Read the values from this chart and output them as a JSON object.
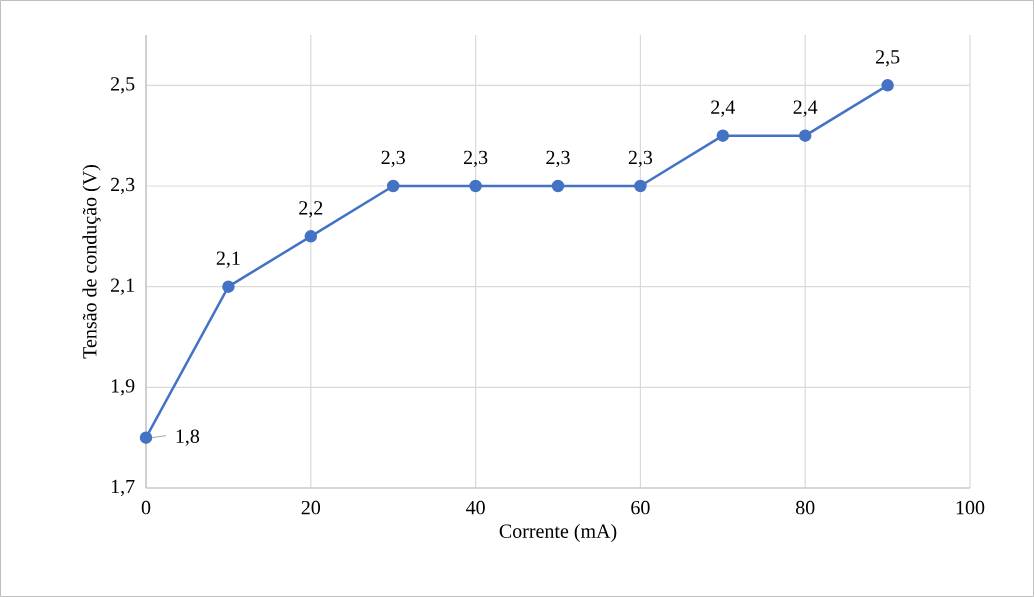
{
  "chart_data": {
    "type": "line",
    "xlabel": "Corrente (mA)",
    "ylabel": "Tensão de condução (V)",
    "x": [
      0,
      10,
      20,
      30,
      40,
      50,
      60,
      70,
      80,
      90
    ],
    "series": [
      {
        "color": "#4472c4",
        "values": [
          1.8,
          2.1,
          2.2,
          2.3,
          2.3,
          2.3,
          2.3,
          2.4,
          2.4,
          2.5
        ],
        "value_labels": [
          "1,8",
          "2,1",
          "2,2",
          "2,3",
          "2,3",
          "2,3",
          "2,3",
          "2,4",
          "2,4",
          "2,5"
        ]
      }
    ],
    "xlim": [
      0,
      100
    ],
    "xticks": [
      0,
      20,
      40,
      60,
      80,
      100
    ],
    "ylim": [
      1.7,
      2.6
    ],
    "yticks": [
      {
        "value": 1.7,
        "label": "1,7"
      },
      {
        "value": 1.9,
        "label": "1,9"
      },
      {
        "value": 2.1,
        "label": "2,1"
      },
      {
        "value": 2.3,
        "label": "2,3"
      },
      {
        "value": 2.5,
        "label": "2,5"
      }
    ],
    "grid": true,
    "marker": "circle",
    "line_style": "solid"
  }
}
